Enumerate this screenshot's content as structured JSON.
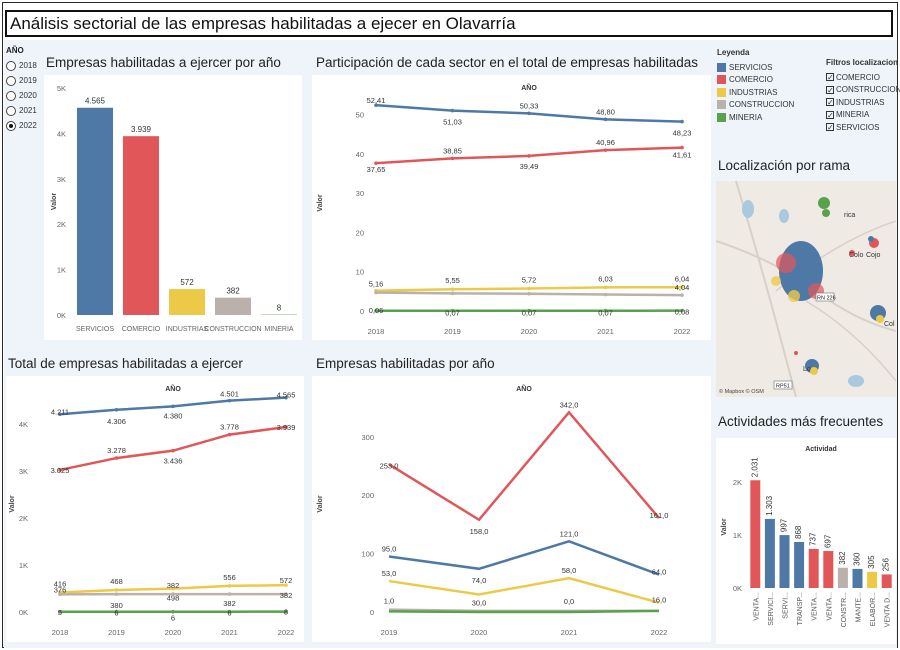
{
  "title": "Análisis sectorial de las empresas habilitadas a ejecer en Olavarría",
  "year_filter": {
    "label": "AÑO",
    "options": [
      "2018",
      "2019",
      "2020",
      "2021",
      "2022"
    ],
    "selected": "2022"
  },
  "legend": {
    "label": "Leyenda",
    "items": [
      {
        "name": "SERVICIOS",
        "color": "#4e79a7"
      },
      {
        "name": "COMERCIO",
        "color": "#e15759"
      },
      {
        "name": "INDUSTRIAS",
        "color": "#edc948"
      },
      {
        "name": "CONSTRUCCION",
        "color": "#bab0ac"
      },
      {
        "name": "MINERIA",
        "color": "#59a14f"
      }
    ]
  },
  "filters": {
    "label": "Filtros localizacion",
    "items": [
      "COMERCIO",
      "CONSTRUCCION",
      "INDUSTRIAS",
      "MINERIA",
      "SERVICIOS"
    ]
  },
  "map": {
    "title": "Localización por rama",
    "labels": [
      "rica",
      "Colo",
      "Cojo",
      "Col",
      "Lo",
      "RP51",
      "RN 226"
    ],
    "attribution": "© Mapbox © OSM"
  },
  "panels": {
    "p1": "Empresas habilitadas a ejercer por año",
    "p2": "Participación de cada sector en el total de empresas habilitadas",
    "p3": "Total de empresas habilitadas a ejercer",
    "p4": "Empresas habilitadas por año",
    "p5": "Actividades más frecuentes"
  },
  "chart_data": [
    {
      "type": "bar",
      "title": "Empresas habilitadas a ejercer por año",
      "ylabel": "Valor",
      "categories": [
        "SERVICIOS",
        "COMERCIO",
        "INDUSTRIAS",
        "CONSTRUCCION",
        "MINERIA"
      ],
      "values": [
        4565,
        3939,
        572,
        382,
        8
      ],
      "value_labels": [
        "4.565",
        "3.939",
        "572",
        "382",
        "8"
      ],
      "yticks": [
        "0K",
        "1K",
        "2K",
        "3K",
        "4K",
        "5K"
      ],
      "ylim": [
        0,
        5000
      ]
    },
    {
      "type": "line",
      "title": "Participación de cada sector en el total de empresas habilitadas",
      "xlabel_top": "AÑO",
      "ylabel": "Valor",
      "x": [
        "2018",
        "2019",
        "2020",
        "2021",
        "2022"
      ],
      "yticks": [
        "0",
        "10",
        "20",
        "30",
        "40",
        "50"
      ],
      "ylim": [
        0,
        55
      ],
      "series": [
        {
          "name": "SERVICIOS",
          "values": [
            52.41,
            51.03,
            50.33,
            48.8,
            48.23
          ],
          "labels": [
            "52,41",
            "51,03",
            "50,33",
            "48,80",
            "48,23"
          ]
        },
        {
          "name": "COMERCIO",
          "values": [
            37.65,
            38.85,
            39.49,
            40.96,
            41.61
          ],
          "labels": [
            "37,65",
            "38,85",
            "39,49",
            "40,96",
            "41,61"
          ]
        },
        {
          "name": "INDUSTRIAS",
          "values": [
            5.16,
            5.55,
            5.72,
            6.03,
            6.04
          ],
          "labels": [
            "5,16",
            "5,55",
            "5,72",
            "6,03",
            "6,04"
          ]
        },
        {
          "name": "CONSTRUCCION",
          "values": [
            4.7,
            4.5,
            4.4,
            4.2,
            4.04
          ],
          "labels": [
            "",
            "",
            "",
            "",
            "4,04"
          ]
        },
        {
          "name": "MINERIA",
          "values": [
            0.06,
            0.07,
            0.07,
            0.07,
            0.08
          ],
          "labels": [
            "0,06",
            "0,07",
            "0,07",
            "0,07",
            "0,08"
          ]
        }
      ]
    },
    {
      "type": "line",
      "title": "Total de empresas habilitadas a ejercer",
      "xlabel_top": "AÑO",
      "ylabel": "Valor",
      "x": [
        "2018",
        "2019",
        "2020",
        "2021",
        "2022"
      ],
      "yticks": [
        "0K",
        "1K",
        "2K",
        "3K",
        "4K"
      ],
      "ylim": [
        0,
        4600
      ],
      "series": [
        {
          "name": "SERVICIOS",
          "values": [
            4211,
            4306,
            4380,
            4501,
            4565
          ],
          "labels": [
            "4.211",
            "4.306",
            "4.380",
            "4.501",
            "4.565"
          ]
        },
        {
          "name": "COMERCIO",
          "values": [
            3025,
            3278,
            3436,
            3778,
            3939
          ],
          "labels": [
            "3.025",
            "3.278",
            "3.436",
            "3.778",
            "3.939"
          ]
        },
        {
          "name": "INDUSTRIAS",
          "values": [
            416,
            468,
            498,
            556,
            572
          ],
          "labels": [
            "416",
            "468",
            "498",
            "556",
            "572"
          ]
        },
        {
          "name": "CONSTRUCCION",
          "values": [
            376,
            380,
            382,
            382,
            382
          ],
          "labels": [
            "376",
            "380",
            "382",
            "382",
            "382"
          ]
        },
        {
          "name": "MINERIA",
          "values": [
            5,
            6,
            6,
            6,
            8
          ],
          "labels": [
            "5",
            "6",
            "6",
            "6",
            "8"
          ]
        }
      ]
    },
    {
      "type": "line",
      "title": "Empresas habilitadas por año",
      "xlabel_top": "AÑO",
      "ylabel": "Valor",
      "x": [
        "2019",
        "2020",
        "2021",
        "2022"
      ],
      "yticks": [
        "0",
        "100",
        "200",
        "300"
      ],
      "ylim": [
        0,
        370
      ],
      "series": [
        {
          "name": "COMERCIO",
          "values": [
            253,
            158,
            342,
            161
          ],
          "labels": [
            "253,0",
            "158,0",
            "342,0",
            "161,0"
          ]
        },
        {
          "name": "SERVICIOS",
          "values": [
            95,
            74,
            121,
            64
          ],
          "labels": [
            "95,0",
            "74,0",
            "121,0",
            "64,0"
          ]
        },
        {
          "name": "INDUSTRIAS",
          "values": [
            53,
            30,
            58,
            16
          ],
          "labels": [
            "53,0",
            "30,0",
            "58,0",
            "16,0"
          ]
        },
        {
          "name": "CONSTRUCCION",
          "values": [
            4,
            2,
            2,
            2
          ],
          "labels": [
            "",
            "",
            "",
            ""
          ]
        },
        {
          "name": "MINERIA",
          "values": [
            1,
            0,
            0,
            2
          ],
          "labels": [
            "1,0",
            "",
            "0,0",
            ""
          ]
        }
      ]
    },
    {
      "type": "bar",
      "title": "Actividades más frecuentes",
      "xlabel_top": "Actividad",
      "ylabel": "Valor",
      "categories": [
        "VENTA...",
        "SERVICI...",
        "SERVI...",
        "TRANSP...",
        "VENTA...",
        "VENTA...",
        "CONSTR...",
        "MANTE...",
        "ELABOR...",
        "VENTA D..."
      ],
      "values": [
        2031,
        1303,
        997,
        868,
        737,
        697,
        382,
        360,
        305,
        256
      ],
      "value_labels": [
        "2.031",
        "1.303",
        "997",
        "868",
        "737",
        "697",
        "382",
        "360",
        "305",
        "256"
      ],
      "colors": [
        "#e15759",
        "#4e79a7",
        "#4e79a7",
        "#4e79a7",
        "#e15759",
        "#e15759",
        "#bab0ac",
        "#4e79a7",
        "#edc948",
        "#e15759"
      ],
      "yticks": [
        "0K",
        "1K",
        "2K"
      ],
      "ylim": [
        0,
        2300
      ]
    }
  ]
}
